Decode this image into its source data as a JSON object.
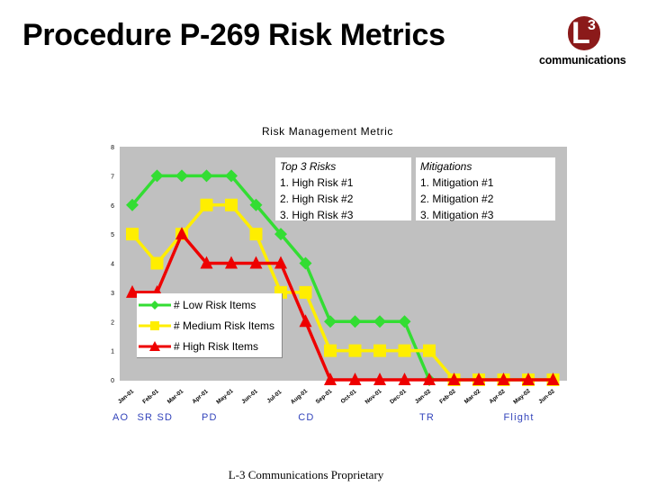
{
  "slide": {
    "title": "Procedure P-269 Risk Metrics",
    "footer": "L-3 Communications Proprietary",
    "logo": {
      "mark": "L",
      "superscript": "3",
      "wordmark": "communications"
    }
  },
  "colors": {
    "plot_bg": "#c0c0c0",
    "low": "#33dd33",
    "medium": "#ffee00",
    "high": "#ee0000",
    "logo_badge": "#8b1a1a",
    "phase_text": "#3344bb"
  },
  "top_risks": {
    "header": "Top 3 Risks",
    "items": [
      "1. High Risk #1",
      "2. High Risk #2",
      "3. High Risk #3"
    ]
  },
  "mitigations": {
    "header": "Mitigations",
    "items": [
      "1. Mitigation #1",
      "2. Mitigation #2",
      "3. Mitigation #3"
    ]
  },
  "chart_data": {
    "type": "line",
    "title": "Risk Management Metric",
    "ylim": [
      0,
      8
    ],
    "yticks": [
      0,
      1,
      2,
      3,
      4,
      5,
      6,
      7,
      8
    ],
    "categories": [
      "Jan-01",
      "Feb-01",
      "Mar-01",
      "Apr-01",
      "May-01",
      "Jun-01",
      "Jul-01",
      "Aug-01",
      "Sep-01",
      "Oct-01",
      "Nov-01",
      "Dec-01",
      "Jan-02",
      "Feb-02",
      "Mar-02",
      "Apr-02",
      "May-02",
      "Jun-02"
    ],
    "series": [
      {
        "name": "# Low  Risk Items",
        "marker": "diamond",
        "values": [
          6,
          7,
          7,
          7,
          7,
          6,
          5,
          4,
          2,
          2,
          2,
          2,
          0,
          0,
          0,
          0,
          0,
          0
        ]
      },
      {
        "name": "# Medium Risk Items",
        "marker": "square",
        "values": [
          5,
          4,
          5,
          6,
          6,
          5,
          3,
          3,
          1,
          1,
          1,
          1,
          1,
          0,
          0,
          0,
          0,
          0
        ]
      },
      {
        "name": "# High Risk Items",
        "marker": "triangle",
        "values": [
          3,
          3,
          5,
          4,
          4,
          4,
          4,
          2,
          0,
          0,
          0,
          0,
          0,
          0,
          0,
          0,
          0,
          0
        ]
      }
    ],
    "phases": [
      {
        "label": "AO",
        "at": 0
      },
      {
        "label": "SR",
        "at": 1
      },
      {
        "label": "SD",
        "at": 1.8
      },
      {
        "label": "PD",
        "at": 3.6
      },
      {
        "label": "CD",
        "at": 7.5
      },
      {
        "label": "TR",
        "at": 12.4
      },
      {
        "label": "Flight",
        "at": 15.8
      }
    ]
  }
}
